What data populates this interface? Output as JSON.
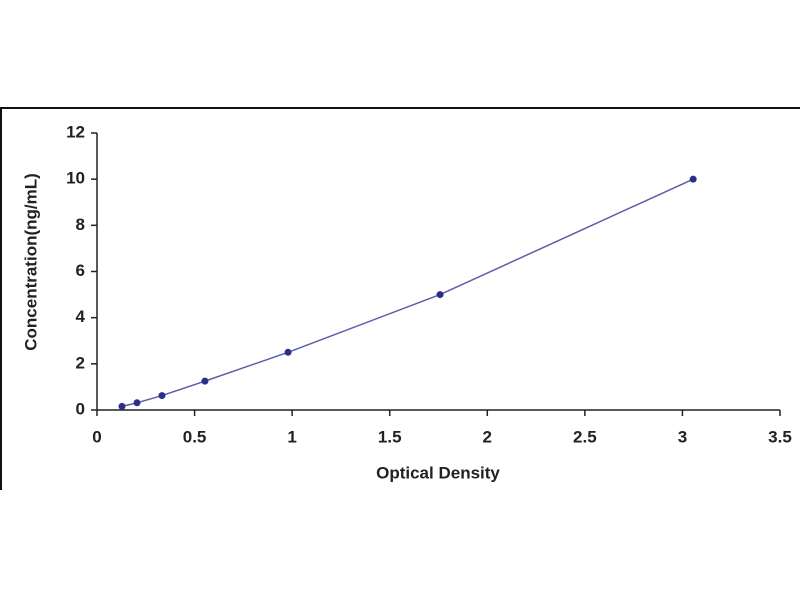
{
  "chart_data": {
    "type": "scatter",
    "x_label": "Optical Density",
    "y_label": "Concentration(ng/mL)",
    "x": [
      0.128,
      0.205,
      0.333,
      0.553,
      0.979,
      1.758,
      3.055
    ],
    "values": [
      0.156,
      0.312,
      0.625,
      1.25,
      2.5,
      5,
      10
    ],
    "color": "#2b2f86",
    "line_color": "#5a5ea8",
    "xlim": [
      0,
      3.5
    ],
    "xticks": [
      0,
      0.5,
      1,
      1.5,
      2,
      2.5,
      3,
      3.5
    ],
    "ylim": [
      0,
      12
    ],
    "yticks": [
      0,
      2,
      4,
      6,
      8,
      10,
      12
    ],
    "grid": false
  }
}
